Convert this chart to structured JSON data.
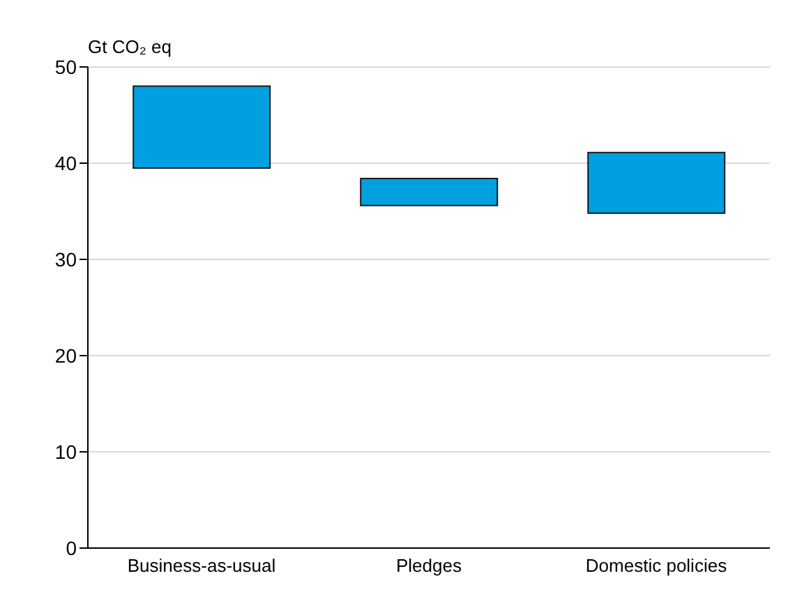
{
  "chart_data": {
    "type": "bar",
    "ylabel": "Gt CO₂ eq",
    "categories": [
      "Business-as-usual",
      "Pledges",
      "Domestic policies"
    ],
    "base": [
      39.5,
      35.6,
      34.8
    ],
    "values": [
      8.5,
      2.8,
      6.3
    ],
    "color": "#00a0e0",
    "ylim": [
      0,
      50
    ],
    "yticks": [
      0,
      10,
      20,
      30,
      40,
      50
    ],
    "grid": "y"
  }
}
